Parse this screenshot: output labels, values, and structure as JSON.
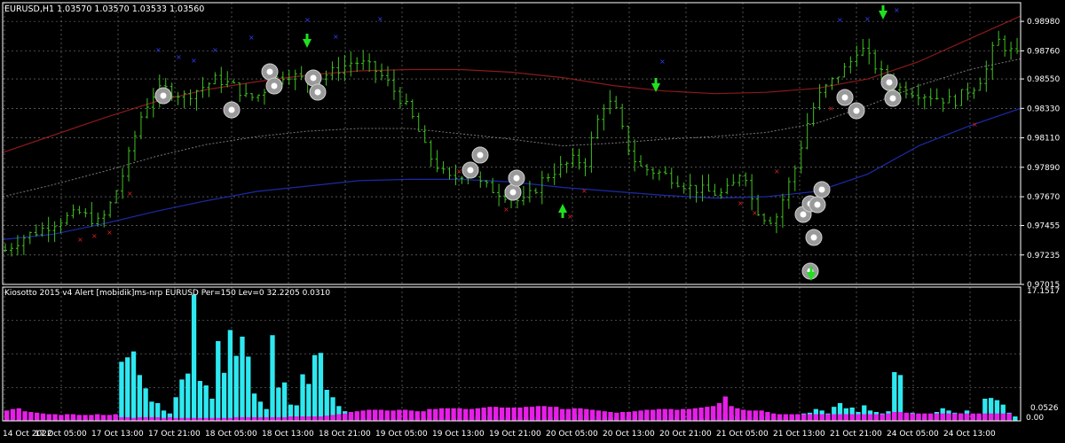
{
  "main_panel": {
    "title": "EURUSD,H1  1.03570 1.03570 1.03533 1.03560",
    "price_labels": [
      "0.98980",
      "0.98760",
      "0.98550",
      "0.98330",
      "0.98110",
      "0.97890",
      "0.97670",
      "0.97455",
      "0.97235",
      "0.97015"
    ]
  },
  "sub_panel": {
    "title": "Kiosotto 2015 v4 Alert [mobidik]ms-nrp EURUSD Per=150 Lev=0 32.2205 0.0310",
    "max_label": "17.1517",
    "right_labels": [
      "0.0526",
      "0.00"
    ]
  },
  "time_labels": [
    "14 Oct 2022",
    "17 Oct 05:00",
    "17 Oct 13:00",
    "17 Oct 21:00",
    "18 Oct 05:00",
    "18 Oct 13:00",
    "18 Oct 21:00",
    "19 Oct 05:00",
    "19 Oct 13:00",
    "19 Oct 21:00",
    "20 Oct 05:00",
    "20 Oct 13:00",
    "20 Oct 21:00",
    "21 Oct 05:00",
    "21 Oct 13:00",
    "21 Oct 21:00",
    "24 Oct 05:00",
    "24 Oct 13:00"
  ],
  "colors": {
    "background": "#000000",
    "grid": "#c0c0c0",
    "candles": "#40c020",
    "upper_band": "#8b1a1a",
    "lower_band": "#1c2aa8",
    "mid_line": "#7a7a7a",
    "bull_hist": "#2ee8f0",
    "bear_hist": "#e81ee8",
    "arrow": "#20e020"
  },
  "chart_data": [
    {
      "type": "candlestick",
      "title": "EURUSD,H1  1.03570 1.03570 1.03533 1.03560",
      "ylim": [
        0.97015,
        0.991
      ],
      "y_ticks": [
        0.9898,
        0.9876,
        0.9855,
        0.9833,
        0.9811,
        0.9789,
        0.9767,
        0.97455,
        0.97235,
        0.97015
      ],
      "series_close": [
        0.9727,
        0.9733,
        0.9738,
        0.9741,
        0.9745,
        0.9749,
        0.9752,
        0.9755,
        0.9751,
        0.9747,
        0.9762,
        0.978,
        0.9805,
        0.983,
        0.9843,
        0.9848,
        0.9845,
        0.9842,
        0.9846,
        0.985,
        0.9855,
        0.9852,
        0.9848,
        0.984,
        0.9843,
        0.985,
        0.9857,
        0.9859,
        0.9855,
        0.9853,
        0.9857,
        0.986,
        0.9864,
        0.9868,
        0.9866,
        0.9862,
        0.9855,
        0.9845,
        0.9835,
        0.982,
        0.98,
        0.979,
        0.978,
        0.9782,
        0.9789,
        0.9777,
        0.9773,
        0.977,
        0.9767,
        0.9762,
        0.977,
        0.978,
        0.9786,
        0.979,
        0.9795,
        0.9792,
        0.982,
        0.984,
        0.983,
        0.9805,
        0.979,
        0.9787,
        0.9785,
        0.9782,
        0.9778,
        0.9774,
        0.9772,
        0.977,
        0.9769,
        0.9775,
        0.979,
        0.976,
        0.9752,
        0.9749,
        0.977,
        0.979,
        0.982,
        0.984,
        0.985,
        0.9858,
        0.9865,
        0.988,
        0.987,
        0.986,
        0.985,
        0.9848,
        0.9846,
        0.9844,
        0.9842,
        0.984,
        0.9838,
        0.9845,
        0.985,
        0.986,
        0.9885,
        0.9878,
        0.9872
      ],
      "upper_band": [
        0.98,
        0.9813,
        0.9826,
        0.9838,
        0.9847,
        0.9853,
        0.9858,
        0.9861,
        0.9862,
        0.9862,
        0.986,
        0.9856,
        0.985,
        0.9846,
        0.9844,
        0.9845,
        0.9848,
        0.9855,
        0.9868,
        0.9885,
        0.9902
      ],
      "lower_band": [
        0.9735,
        0.9739,
        0.9747,
        0.9756,
        0.9764,
        0.9771,
        0.9775,
        0.9779,
        0.978,
        0.978,
        0.9778,
        0.9774,
        0.9771,
        0.9768,
        0.9766,
        0.9767,
        0.9771,
        0.9784,
        0.9805,
        0.982,
        0.9833
      ],
      "mid_line": [
        0.9767,
        0.9776,
        0.9786,
        0.9797,
        0.9806,
        0.9812,
        0.9816,
        0.9818,
        0.9818,
        0.9814,
        0.981,
        0.9805,
        0.9807,
        0.981,
        0.9812,
        0.9815,
        0.9822,
        0.9835,
        0.985,
        0.9862,
        0.987
      ]
    },
    {
      "type": "bar",
      "title": "Kiosotto 2015 v4 Alert [mobidik]ms-nrp EURUSD Per=150 Lev=0 32.2205 0.0310",
      "ylim": [
        0,
        17.1517
      ],
      "series": [
        {
          "values": [
            0.3,
            0.2,
            0.2,
            0.2,
            0.3,
            0.2,
            0.2,
            0.2,
            0.3,
            0.2,
            0.3,
            0.4,
            0.3,
            0.3,
            0.3,
            0.4,
            0.3,
            0.2,
            0.4,
            8.0,
            8.6,
            9.4,
            6.2,
            4.4,
            2.6,
            2.4,
            1.4,
            1.0,
            3.2,
            5.6,
            6.4,
            17.1,
            5.4,
            4.8,
            3.0,
            10.8,
            6.5,
            12.3,
            8.8,
            11.4,
            8.7,
            3.7,
            2.6,
            1.6,
            11.6,
            4.5,
            5.2,
            2.2,
            2.1,
            6.3,
            5.0,
            8.9,
            9.2,
            4.2,
            3.2,
            2.0,
            1.3,
            0.8,
            0.5,
            0.4,
            0.3,
            0.3,
            0.3,
            0.3,
            0.3,
            0.3,
            0.3,
            0.4,
            0.3,
            0.3,
            0.3,
            0.3,
            0.4,
            0.4,
            0.3,
            0.3,
            0.4,
            0.5,
            0.7,
            0.8,
            0.7,
            0.7,
            0.6,
            0.5,
            0.5,
            0.5,
            0.5,
            0.6,
            0.5,
            0.4,
            0.5,
            0.6,
            0.8,
            1.0,
            0.9,
            0.8,
            0.7,
            0.7,
            0.6,
            0.5,
            0.5,
            0.5,
            0.4,
            0.6,
            0.8,
            1.2,
            1.0,
            1.3,
            1.1,
            0.9,
            0.8,
            0.5,
            0.6,
            0.7,
            0.6,
            0.4,
            0.4,
            0.4,
            0.4,
            1.0,
            0.8,
            0.6,
            0.6,
            0.5,
            0.6,
            0.7,
            0.6,
            0.5,
            0.4,
            0.5,
            0.7,
            0.9,
            1.0,
            1.1,
            1.6,
            1.4,
            1.0,
            1.9,
            2.4,
            1.7,
            1.8,
            1.2,
            2.1,
            1.4,
            1.2,
            1.0,
            1.3,
            6.6,
            6.2,
            0.9,
            1.1,
            0.8,
            0.6,
            0.5,
            1.2,
            1.7,
            1.4,
            1.1,
            1.0,
            1.4,
            0.9,
            0.7,
            3.0,
            3.1,
            2.8,
            2.2,
            1.1,
            0.6
          ]
        },
        {
          "values": [
            1.4,
            1.6,
            1.7,
            1.3,
            1.2,
            1.1,
            1.0,
            0.9,
            0.9,
            0.8,
            0.9,
            0.9,
            0.8,
            0.8,
            0.8,
            0.9,
            0.8,
            0.8,
            0.9,
            0.5,
            0.5,
            0.4,
            0.5,
            0.5,
            0.5,
            0.5,
            0.4,
            0.5,
            0.4,
            0.4,
            0.4,
            0.4,
            0.4,
            0.4,
            0.4,
            0.4,
            0.4,
            0.4,
            0.5,
            0.5,
            0.5,
            0.5,
            0.5,
            0.5,
            0.5,
            0.5,
            0.5,
            0.6,
            0.6,
            0.6,
            0.6,
            0.6,
            0.6,
            0.7,
            0.8,
            0.9,
            1.0,
            1.2,
            1.3,
            1.4,
            1.5,
            1.5,
            1.5,
            1.4,
            1.4,
            1.5,
            1.5,
            1.4,
            1.3,
            1.3,
            1.6,
            1.6,
            1.7,
            1.7,
            1.7,
            1.7,
            1.6,
            1.6,
            1.7,
            1.8,
            1.9,
            1.9,
            1.8,
            1.8,
            1.8,
            1.8,
            1.9,
            1.9,
            2.0,
            2.0,
            1.9,
            1.9,
            1.6,
            1.6,
            1.7,
            1.7,
            1.6,
            1.5,
            1.4,
            1.3,
            1.2,
            1.1,
            1.2,
            1.2,
            1.3,
            1.4,
            1.5,
            1.5,
            1.6,
            1.6,
            1.6,
            1.5,
            1.6,
            1.6,
            1.7,
            1.8,
            1.9,
            2.0,
            2.4,
            3.3,
            2.0,
            1.7,
            1.5,
            1.4,
            1.4,
            1.4,
            1.2,
            1.0,
            0.9,
            0.9,
            0.9,
            0.9,
            0.9,
            0.9,
            0.9,
            0.9,
            0.9,
            0.9,
            0.9,
            0.9,
            0.9,
            0.9,
            0.9,
            0.9,
            0.9,
            0.9,
            1.0,
            1.2,
            1.2,
            1.1,
            1.0,
            1.0,
            1.0,
            1.0,
            1.0,
            1.0,
            1.0,
            1.0,
            1.0,
            1.0,
            1.0,
            1.0,
            1.0,
            1.0,
            1.0,
            1.0,
            1.0
          ]
        }
      ]
    }
  ]
}
